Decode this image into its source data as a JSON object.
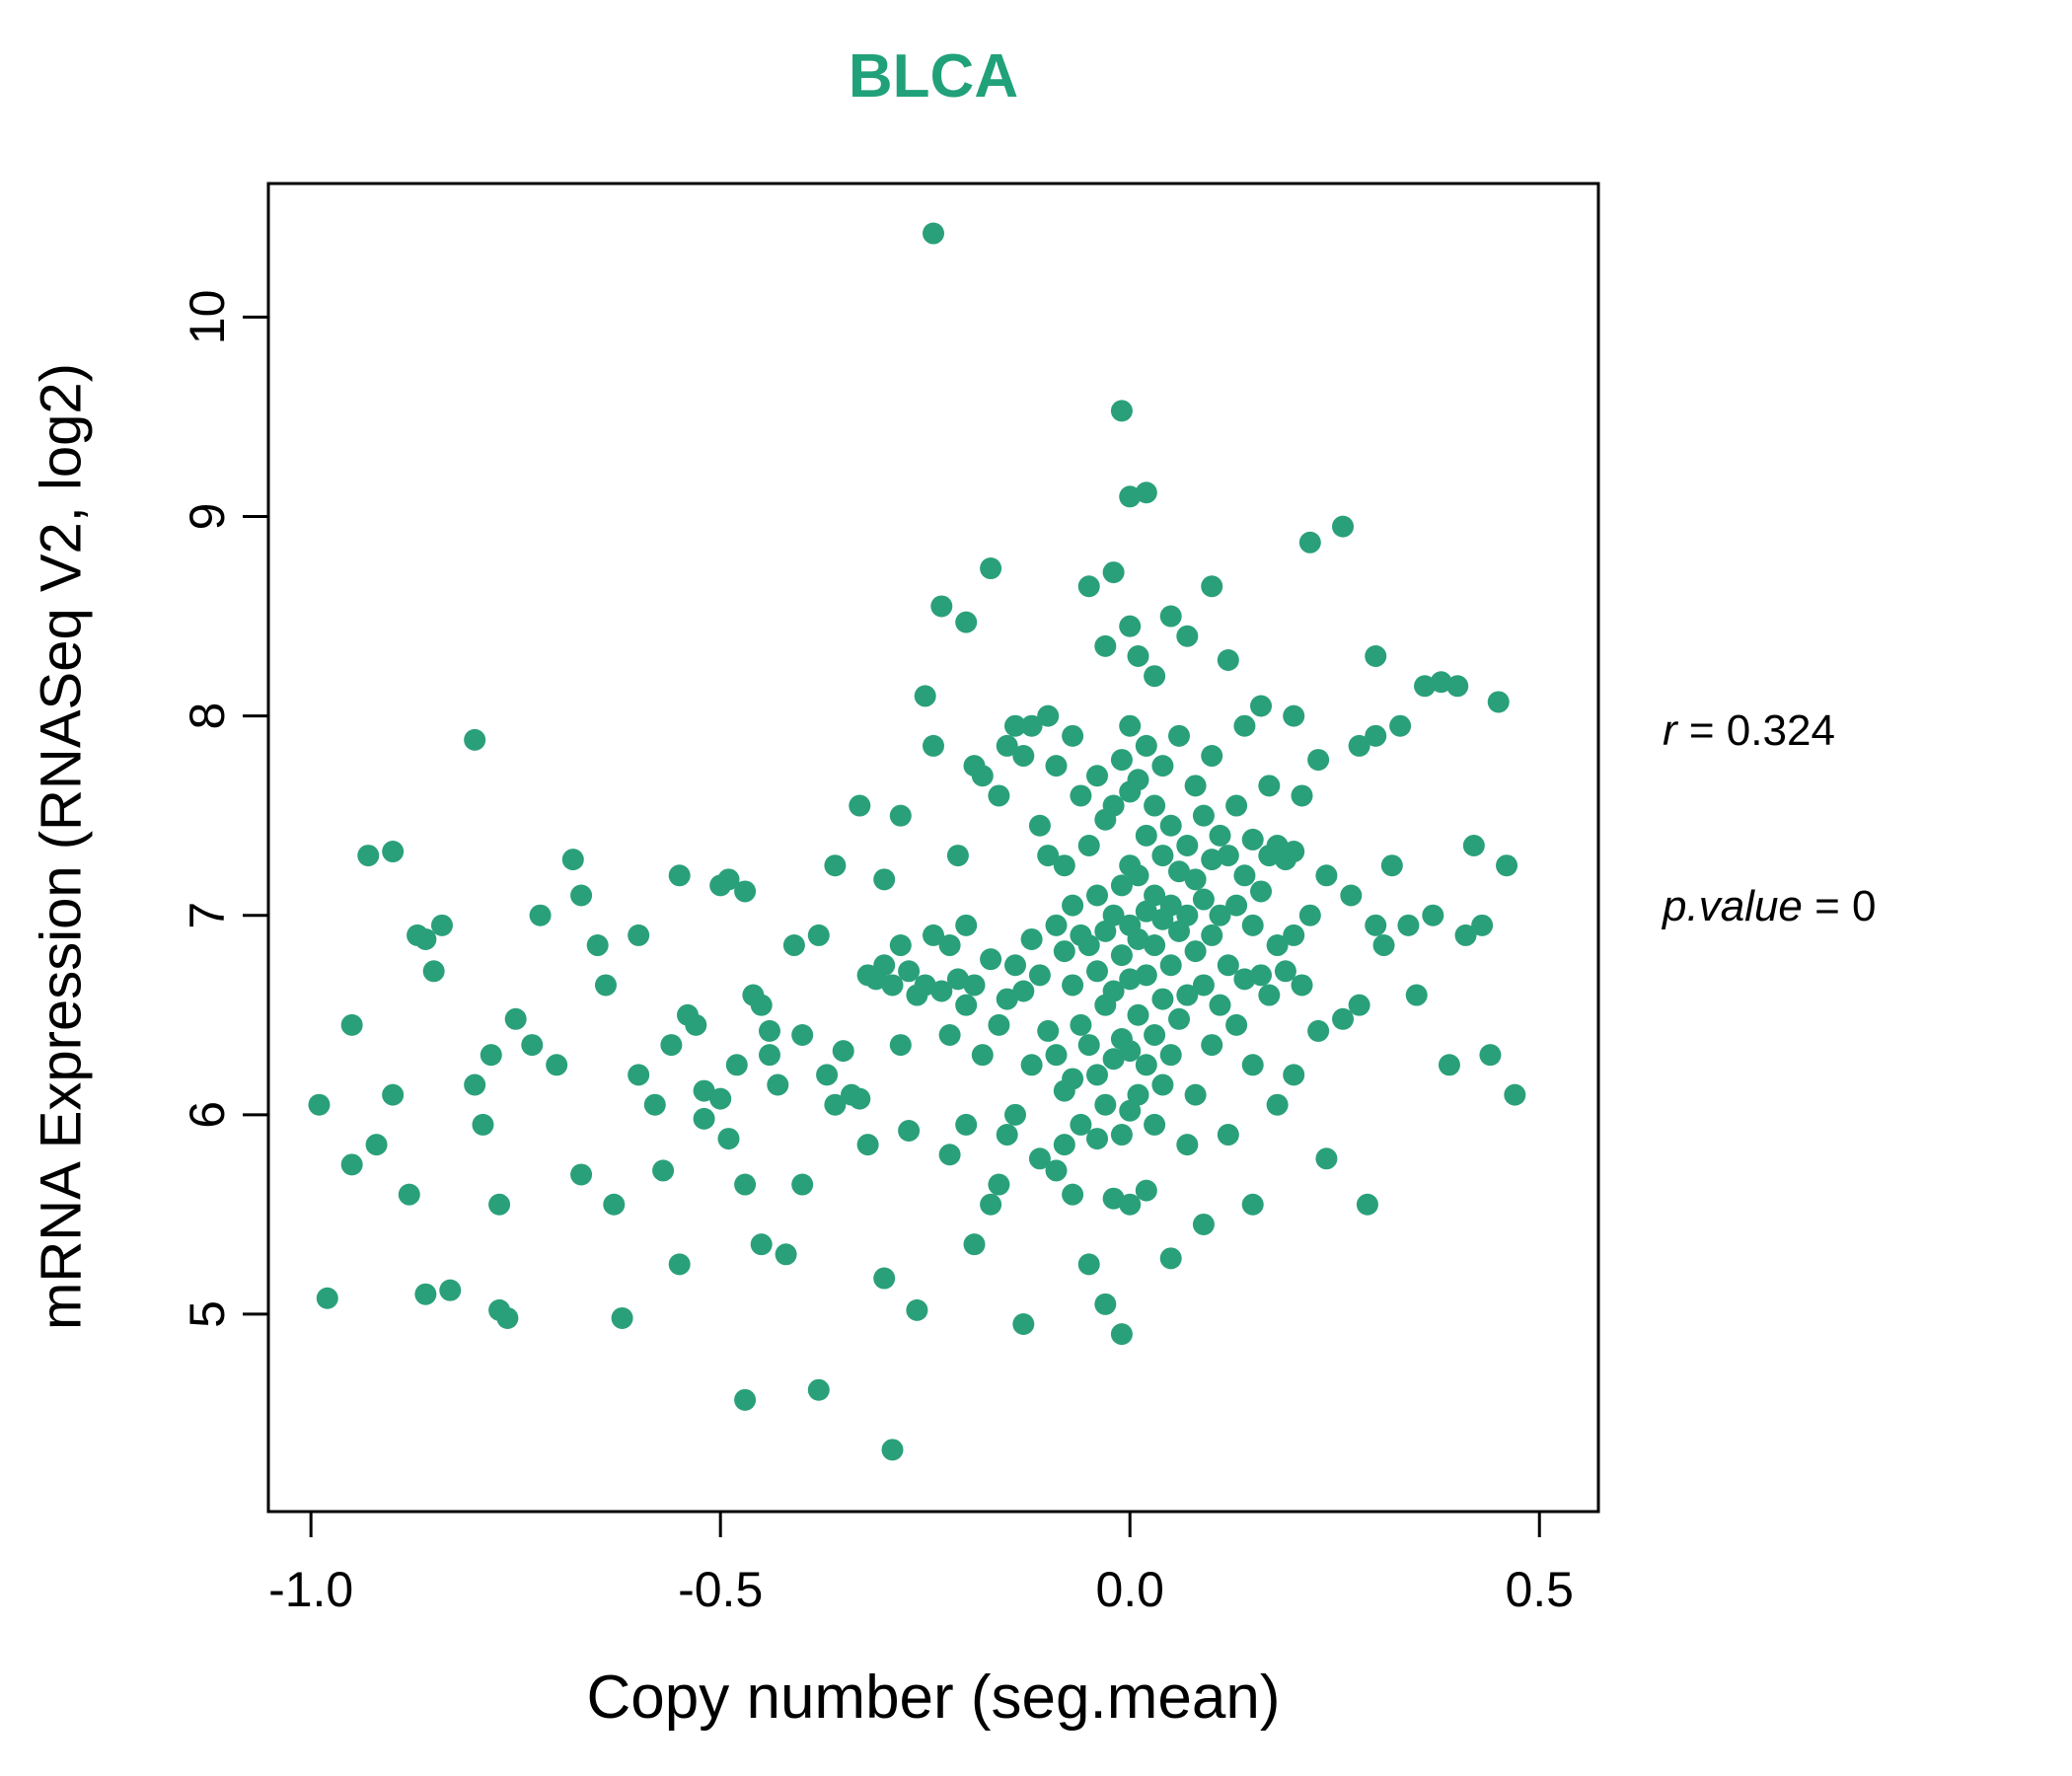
{
  "chart_data": {
    "type": "scatter",
    "title": "BLCA",
    "title_color": "#21a179",
    "point_color": "#2aa07a",
    "xlabel": "Copy number (seg.mean)",
    "ylabel": "mRNA Expression (RNASeq V2, log2)",
    "x_ticks": [
      -1.0,
      -0.5,
      0.0,
      0.5
    ],
    "x_tick_labels": [
      "-1.0",
      "-0.5",
      "0.0",
      "0.5"
    ],
    "y_ticks": [
      5,
      6,
      7,
      8,
      9,
      10
    ],
    "y_tick_labels": [
      "5",
      "6",
      "7",
      "8",
      "9",
      "10"
    ],
    "xlim": [
      -1.052,
      0.572
    ],
    "ylim": [
      4.01,
      10.67
    ],
    "grid": false,
    "legend": "none",
    "annotation": {
      "r_var": "r",
      "r_rest": " = 0.324",
      "p_var": "p.value",
      "p_rest": " = 0"
    },
    "points": [
      [
        -0.99,
        6.05
      ],
      [
        -0.98,
        5.08
      ],
      [
        -0.95,
        6.45
      ],
      [
        -0.95,
        5.75
      ],
      [
        -0.93,
        7.3
      ],
      [
        -0.92,
        5.85
      ],
      [
        -0.9,
        7.32
      ],
      [
        -0.9,
        6.1
      ],
      [
        -0.88,
        5.6
      ],
      [
        -0.87,
        6.9
      ],
      [
        -0.86,
        6.88
      ],
      [
        -0.86,
        5.1
      ],
      [
        -0.85,
        6.72
      ],
      [
        -0.84,
        6.95
      ],
      [
        -0.83,
        5.12
      ],
      [
        -0.8,
        7.88
      ],
      [
        -0.8,
        6.15
      ],
      [
        -0.79,
        5.95
      ],
      [
        -0.78,
        6.3
      ],
      [
        -0.77,
        5.55
      ],
      [
        -0.77,
        5.02
      ],
      [
        -0.76,
        4.98
      ],
      [
        -0.75,
        6.48
      ],
      [
        -0.73,
        6.35
      ],
      [
        -0.72,
        7.0
      ],
      [
        -0.7,
        6.25
      ],
      [
        -0.68,
        7.28
      ],
      [
        -0.67,
        7.1
      ],
      [
        -0.67,
        5.7
      ],
      [
        -0.65,
        6.85
      ],
      [
        -0.64,
        6.65
      ],
      [
        -0.63,
        5.55
      ],
      [
        -0.62,
        4.98
      ],
      [
        -0.6,
        6.9
      ],
      [
        -0.6,
        6.2
      ],
      [
        -0.58,
        6.05
      ],
      [
        -0.57,
        5.72
      ],
      [
        -0.56,
        6.35
      ],
      [
        -0.55,
        7.2
      ],
      [
        -0.55,
        5.25
      ],
      [
        -0.54,
        6.5
      ],
      [
        -0.53,
        6.45
      ],
      [
        -0.52,
        5.98
      ],
      [
        -0.52,
        6.12
      ],
      [
        -0.5,
        7.15
      ],
      [
        -0.5,
        6.08
      ],
      [
        -0.49,
        7.18
      ],
      [
        -0.49,
        5.88
      ],
      [
        -0.48,
        6.25
      ],
      [
        -0.47,
        7.12
      ],
      [
        -0.47,
        5.65
      ],
      [
        -0.47,
        4.57
      ],
      [
        -0.46,
        6.6
      ],
      [
        -0.45,
        6.55
      ],
      [
        -0.45,
        5.35
      ],
      [
        -0.44,
        6.42
      ],
      [
        -0.44,
        6.3
      ],
      [
        -0.43,
        6.15
      ],
      [
        -0.42,
        5.3
      ],
      [
        -0.41,
        6.85
      ],
      [
        -0.4,
        6.4
      ],
      [
        -0.4,
        5.65
      ],
      [
        -0.38,
        6.9
      ],
      [
        -0.38,
        4.62
      ],
      [
        -0.37,
        6.2
      ],
      [
        -0.36,
        7.25
      ],
      [
        -0.36,
        6.05
      ],
      [
        -0.35,
        6.32
      ],
      [
        -0.34,
        6.1
      ],
      [
        -0.33,
        7.55
      ],
      [
        -0.33,
        6.08
      ],
      [
        -0.32,
        6.7
      ],
      [
        -0.32,
        5.85
      ],
      [
        -0.31,
        6.68
      ],
      [
        -0.3,
        7.18
      ],
      [
        -0.3,
        6.75
      ],
      [
        -0.3,
        5.18
      ],
      [
        -0.29,
        6.65
      ],
      [
        -0.29,
        4.32
      ],
      [
        -0.28,
        7.5
      ],
      [
        -0.28,
        6.85
      ],
      [
        -0.28,
        6.35
      ],
      [
        -0.27,
        6.72
      ],
      [
        -0.27,
        5.92
      ],
      [
        -0.26,
        6.6
      ],
      [
        -0.26,
        5.02
      ],
      [
        -0.25,
        8.1
      ],
      [
        -0.25,
        6.65
      ],
      [
        -0.24,
        10.42
      ],
      [
        -0.24,
        7.85
      ],
      [
        -0.24,
        6.9
      ],
      [
        -0.23,
        8.55
      ],
      [
        -0.23,
        6.62
      ],
      [
        -0.22,
        6.85
      ],
      [
        -0.22,
        6.4
      ],
      [
        -0.22,
        5.8
      ],
      [
        -0.21,
        7.3
      ],
      [
        -0.21,
        6.68
      ],
      [
        -0.2,
        8.47
      ],
      [
        -0.2,
        6.95
      ],
      [
        -0.2,
        6.55
      ],
      [
        -0.2,
        5.95
      ],
      [
        -0.19,
        7.75
      ],
      [
        -0.19,
        6.65
      ],
      [
        -0.19,
        5.35
      ],
      [
        -0.18,
        7.7
      ],
      [
        -0.18,
        6.3
      ],
      [
        -0.17,
        8.74
      ],
      [
        -0.17,
        6.78
      ],
      [
        -0.17,
        5.55
      ],
      [
        -0.16,
        7.6
      ],
      [
        -0.16,
        6.45
      ],
      [
        -0.16,
        5.65
      ],
      [
        -0.15,
        7.85
      ],
      [
        -0.15,
        6.58
      ],
      [
        -0.15,
        5.9
      ],
      [
        -0.14,
        7.95
      ],
      [
        -0.14,
        6.75
      ],
      [
        -0.14,
        6.0
      ],
      [
        -0.13,
        7.8
      ],
      [
        -0.13,
        6.62
      ],
      [
        -0.13,
        4.95
      ],
      [
        -0.12,
        7.95
      ],
      [
        -0.12,
        6.88
      ],
      [
        -0.12,
        6.25
      ],
      [
        -0.11,
        7.45
      ],
      [
        -0.11,
        6.7
      ],
      [
        -0.11,
        5.78
      ],
      [
        -0.1,
        8.0
      ],
      [
        -0.1,
        7.3
      ],
      [
        -0.1,
        6.42
      ],
      [
        -0.09,
        7.75
      ],
      [
        -0.09,
        6.95
      ],
      [
        -0.09,
        6.3
      ],
      [
        -0.09,
        5.72
      ],
      [
        -0.08,
        7.25
      ],
      [
        -0.08,
        6.82
      ],
      [
        -0.08,
        6.12
      ],
      [
        -0.08,
        5.85
      ],
      [
        -0.07,
        7.9
      ],
      [
        -0.07,
        7.05
      ],
      [
        -0.07,
        6.65
      ],
      [
        -0.07,
        6.18
      ],
      [
        -0.07,
        5.6
      ],
      [
        -0.06,
        7.6
      ],
      [
        -0.06,
        6.9
      ],
      [
        -0.06,
        6.45
      ],
      [
        -0.06,
        5.95
      ],
      [
        -0.05,
        8.65
      ],
      [
        -0.05,
        7.35
      ],
      [
        -0.05,
        6.85
      ],
      [
        -0.05,
        6.35
      ],
      [
        -0.05,
        5.25
      ],
      [
        -0.04,
        7.7
      ],
      [
        -0.04,
        7.1
      ],
      [
        -0.04,
        6.72
      ],
      [
        -0.04,
        6.2
      ],
      [
        -0.04,
        5.88
      ],
      [
        -0.03,
        8.35
      ],
      [
        -0.03,
        7.48
      ],
      [
        -0.03,
        6.92
      ],
      [
        -0.03,
        6.55
      ],
      [
        -0.03,
        6.05
      ],
      [
        -0.03,
        5.05
      ],
      [
        -0.02,
        8.72
      ],
      [
        -0.02,
        7.55
      ],
      [
        -0.02,
        7.0
      ],
      [
        -0.02,
        6.62
      ],
      [
        -0.02,
        6.28
      ],
      [
        -0.02,
        5.58
      ],
      [
        -0.01,
        9.53
      ],
      [
        -0.01,
        7.78
      ],
      [
        -0.01,
        7.15
      ],
      [
        -0.01,
        6.8
      ],
      [
        -0.01,
        6.38
      ],
      [
        -0.01,
        5.9
      ],
      [
        -0.01,
        4.9
      ],
      [
        0.0,
        9.1
      ],
      [
        0.0,
        8.45
      ],
      [
        0.0,
        7.95
      ],
      [
        0.0,
        7.62
      ],
      [
        0.0,
        7.25
      ],
      [
        0.0,
        6.95
      ],
      [
        0.0,
        6.68
      ],
      [
        0.0,
        6.32
      ],
      [
        0.0,
        6.02
      ],
      [
        0.0,
        5.55
      ],
      [
        0.01,
        8.3
      ],
      [
        0.01,
        7.68
      ],
      [
        0.01,
        7.2
      ],
      [
        0.01,
        6.88
      ],
      [
        0.01,
        6.5
      ],
      [
        0.01,
        6.1
      ],
      [
        0.02,
        9.12
      ],
      [
        0.02,
        7.85
      ],
      [
        0.02,
        7.4
      ],
      [
        0.02,
        7.02
      ],
      [
        0.02,
        6.7
      ],
      [
        0.02,
        6.25
      ],
      [
        0.02,
        5.62
      ],
      [
        0.03,
        8.2
      ],
      [
        0.03,
        7.55
      ],
      [
        0.03,
        7.1
      ],
      [
        0.03,
        6.85
      ],
      [
        0.03,
        6.4
      ],
      [
        0.03,
        5.95
      ],
      [
        0.04,
        7.75
      ],
      [
        0.04,
        7.3
      ],
      [
        0.04,
        6.98
      ],
      [
        0.04,
        6.58
      ],
      [
        0.04,
        6.15
      ],
      [
        0.05,
        8.5
      ],
      [
        0.05,
        7.45
      ],
      [
        0.05,
        7.05
      ],
      [
        0.05,
        6.75
      ],
      [
        0.05,
        6.3
      ],
      [
        0.05,
        5.28
      ],
      [
        0.06,
        7.9
      ],
      [
        0.06,
        7.22
      ],
      [
        0.06,
        6.92
      ],
      [
        0.06,
        6.48
      ],
      [
        0.07,
        8.4
      ],
      [
        0.07,
        7.35
      ],
      [
        0.07,
        7.0
      ],
      [
        0.07,
        6.6
      ],
      [
        0.07,
        5.85
      ],
      [
        0.08,
        7.65
      ],
      [
        0.08,
        7.18
      ],
      [
        0.08,
        6.82
      ],
      [
        0.08,
        6.1
      ],
      [
        0.09,
        7.5
      ],
      [
        0.09,
        7.08
      ],
      [
        0.09,
        6.65
      ],
      [
        0.09,
        5.45
      ],
      [
        0.1,
        8.65
      ],
      [
        0.1,
        7.8
      ],
      [
        0.1,
        7.28
      ],
      [
        0.1,
        6.9
      ],
      [
        0.1,
        6.35
      ],
      [
        0.11,
        7.4
      ],
      [
        0.11,
        7.0
      ],
      [
        0.11,
        6.55
      ],
      [
        0.12,
        8.28
      ],
      [
        0.12,
        7.3
      ],
      [
        0.12,
        6.75
      ],
      [
        0.12,
        5.9
      ],
      [
        0.13,
        7.55
      ],
      [
        0.13,
        7.05
      ],
      [
        0.13,
        6.45
      ],
      [
        0.14,
        7.95
      ],
      [
        0.14,
        7.2
      ],
      [
        0.14,
        6.68
      ],
      [
        0.15,
        7.38
      ],
      [
        0.15,
        6.95
      ],
      [
        0.15,
        6.25
      ],
      [
        0.15,
        5.55
      ],
      [
        0.16,
        8.05
      ],
      [
        0.16,
        7.12
      ],
      [
        0.16,
        6.7
      ],
      [
        0.17,
        7.65
      ],
      [
        0.17,
        7.3
      ],
      [
        0.17,
        6.6
      ],
      [
        0.18,
        7.35
      ],
      [
        0.18,
        6.85
      ],
      [
        0.18,
        6.05
      ],
      [
        0.19,
        7.28
      ],
      [
        0.19,
        6.72
      ],
      [
        0.2,
        8.0
      ],
      [
        0.2,
        7.32
      ],
      [
        0.2,
        6.9
      ],
      [
        0.2,
        6.2
      ],
      [
        0.21,
        7.6
      ],
      [
        0.21,
        6.65
      ],
      [
        0.22,
        8.87
      ],
      [
        0.22,
        7.0
      ],
      [
        0.23,
        7.78
      ],
      [
        0.23,
        6.42
      ],
      [
        0.24,
        7.2
      ],
      [
        0.24,
        5.78
      ],
      [
        0.26,
        8.95
      ],
      [
        0.26,
        6.48
      ],
      [
        0.27,
        7.1
      ],
      [
        0.28,
        7.85
      ],
      [
        0.28,
        6.55
      ],
      [
        0.29,
        5.55
      ],
      [
        0.3,
        8.3
      ],
      [
        0.3,
        7.9
      ],
      [
        0.3,
        6.95
      ],
      [
        0.31,
        6.85
      ],
      [
        0.32,
        7.25
      ],
      [
        0.33,
        7.95
      ],
      [
        0.34,
        6.95
      ],
      [
        0.35,
        6.6
      ],
      [
        0.36,
        8.15
      ],
      [
        0.37,
        7.0
      ],
      [
        0.38,
        8.17
      ],
      [
        0.39,
        6.25
      ],
      [
        0.4,
        8.15
      ],
      [
        0.41,
        6.9
      ],
      [
        0.42,
        7.35
      ],
      [
        0.43,
        6.95
      ],
      [
        0.44,
        6.3
      ],
      [
        0.45,
        8.07
      ],
      [
        0.46,
        7.25
      ],
      [
        0.47,
        6.1
      ]
    ]
  }
}
